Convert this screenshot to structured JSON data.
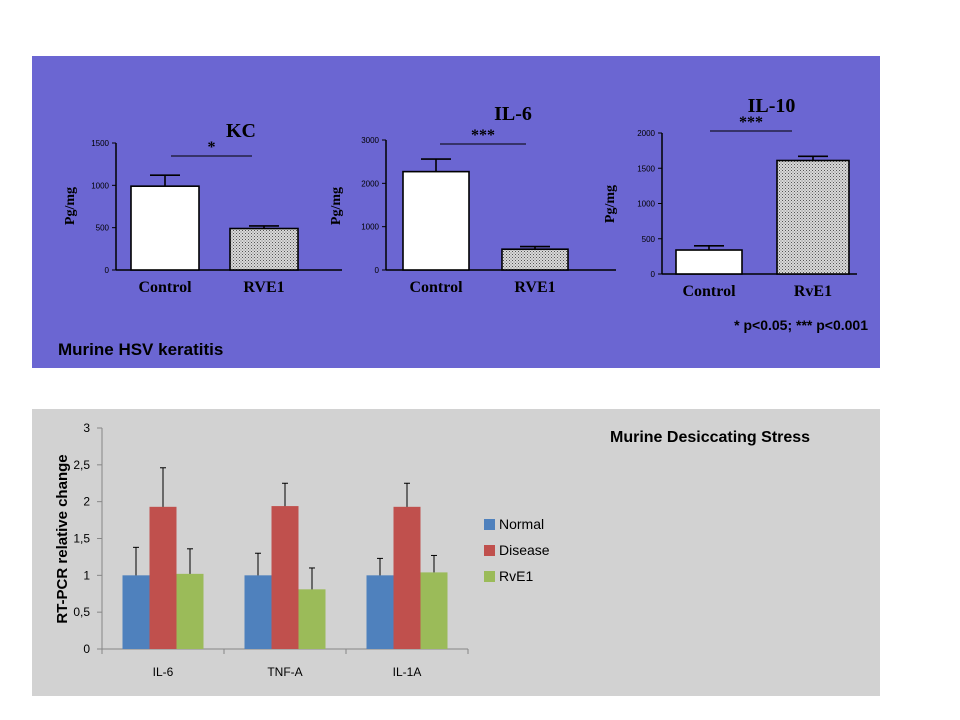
{
  "top_panel": {
    "caption": "Murine HSV keratitis",
    "footnote": "* p<0.05; *** p<0.001",
    "colors": {
      "background": "#6b66d2",
      "control_fill": "#ffffff",
      "treated_fill": "#bdbdbd"
    }
  },
  "bottom_panel": {
    "colors": {
      "background": "#d2d2d2"
    }
  },
  "chart_data": [
    {
      "type": "bar",
      "title": "KC",
      "ylabel": "Pg/mg",
      "categories": [
        "Control",
        "RVE1"
      ],
      "values": [
        990,
        490
      ],
      "errors": [
        130,
        30
      ],
      "ylim": [
        0,
        1500
      ],
      "yticks": [
        0,
        500,
        1000,
        1500
      ],
      "significance": "*"
    },
    {
      "type": "bar",
      "title": "IL-6",
      "ylabel": "Pg/mg",
      "categories": [
        "Control",
        "RVE1"
      ],
      "values": [
        2270,
        480
      ],
      "errors": [
        290,
        60
      ],
      "ylim": [
        0,
        3000
      ],
      "yticks": [
        0,
        1000,
        2000,
        3000
      ],
      "significance": "***"
    },
    {
      "type": "bar",
      "title": "IL-10",
      "ylabel": "Pg/mg",
      "categories": [
        "Control",
        "RvE1"
      ],
      "values": [
        340,
        1610
      ],
      "errors": [
        60,
        60
      ],
      "ylim": [
        0,
        2000
      ],
      "yticks": [
        0,
        500,
        1000,
        1500,
        2000
      ],
      "significance": "***"
    },
    {
      "type": "bar",
      "title": "Murine Desiccating Stress",
      "ylabel": "RT-PCR relative change",
      "categories": [
        "IL-6",
        "TNF-A",
        "IL-1A"
      ],
      "ylim": [
        0,
        3
      ],
      "yticks": [
        "0",
        "0,5",
        "1",
        "1,5",
        "2",
        "2,5",
        "3"
      ],
      "legend_position": "right",
      "series": [
        {
          "name": "Normal",
          "color": "#4f81bd",
          "values": [
            1.0,
            1.0,
            1.0
          ],
          "errors": [
            0.38,
            0.3,
            0.23
          ]
        },
        {
          "name": "Disease",
          "color": "#c0504d",
          "values": [
            1.93,
            1.94,
            1.93
          ],
          "errors": [
            0.53,
            0.31,
            0.32
          ]
        },
        {
          "name": "RvE1",
          "color": "#9bbb59",
          "values": [
            1.02,
            0.81,
            1.04
          ],
          "errors": [
            0.34,
            0.29,
            0.23
          ]
        }
      ]
    }
  ]
}
